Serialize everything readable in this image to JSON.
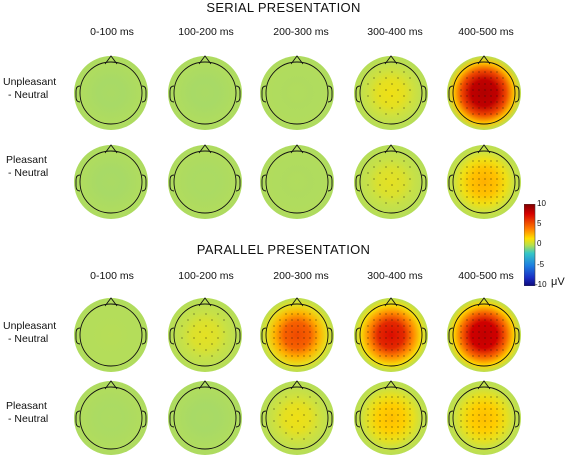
{
  "serial": {
    "title": "SERIAL PRESENTATION",
    "time_windows": [
      "0-100 ms",
      "100-200 ms",
      "200-300 ms",
      "300-400 ms",
      "400-500 ms"
    ],
    "rows": [
      {
        "label_line1": "Unpleasant",
        "label_line2": "- Neutral"
      },
      {
        "label_line1": "Pleasant",
        "label_line2": "- Neutral"
      }
    ]
  },
  "parallel": {
    "title": "PARALLEL PRESENTATION",
    "time_windows": [
      "0-100 ms",
      "100-200 ms",
      "200-300 ms",
      "300-400 ms",
      "400-500 ms"
    ],
    "rows": [
      {
        "label_line1": "Unpleasant",
        "label_line2": "- Neutral"
      },
      {
        "label_line1": "Pleasant",
        "label_line2": "- Neutral"
      }
    ]
  },
  "colorbar": {
    "ticks": [
      "10",
      "5",
      "0",
      "-5",
      "-10"
    ],
    "unit": "μV",
    "min": -10,
    "max": 10
  },
  "maps": {
    "serial": [
      [
        0.6,
        0.6,
        0.8,
        2.2,
        7.5
      ],
      [
        0.6,
        0.7,
        0.8,
        2.0,
        3.2
      ]
    ],
    "parallel": [
      [
        1.0,
        2.0,
        4.8,
        5.8,
        6.8
      ],
      [
        0.7,
        0.6,
        2.2,
        3.0,
        3.0
      ]
    ]
  }
}
